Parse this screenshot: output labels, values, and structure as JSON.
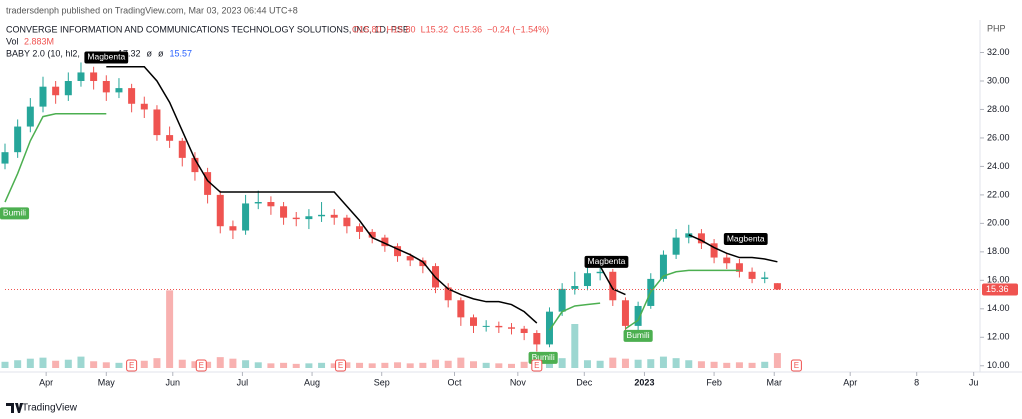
{
  "header": {
    "publisher": "tradersdenph published on TradingView.com, Mar 03, 2023 06:44 UTC+8",
    "symbol": "CONVERGE INFORMATION AND COMMUNICATIONS TECHNOLOGY SOLUTIONS, INC, 1D, PSE",
    "ohlc": [
      "O15.80",
      "H15.80",
      "L15.32",
      "C15.36",
      "−0.24 (−1.54%)"
    ],
    "volume_name": "Vol",
    "volume_text": "2.883M",
    "indicator": "BABY 2.0 (10, hl2,",
    "indicator_values": [
      "17.32",
      "ø",
      "ø",
      "15.57"
    ],
    "currency": "PHP",
    "brand": "TradingView"
  },
  "chart_data": {
    "type": "candlestick",
    "x": [
      0,
      4,
      8,
      12,
      16,
      20,
      24,
      28,
      32,
      36,
      40,
      44,
      48,
      52,
      56,
      60,
      64,
      68,
      72,
      76,
      80,
      84,
      88,
      92,
      96,
      100,
      104,
      108,
      112,
      116,
      120,
      124,
      128,
      132,
      136,
      140,
      144,
      148,
      152,
      156,
      160,
      164,
      168,
      172,
      176,
      180,
      184,
      188,
      192,
      196,
      200,
      204,
      208,
      212,
      216,
      220,
      224,
      228,
      232,
      236,
      240,
      244
    ],
    "open": [
      24.2,
      25.0,
      26.8,
      28.2,
      29.6,
      29.0,
      30.0,
      30.6,
      30.0,
      29.2,
      29.5,
      28.4,
      28.0,
      26.2,
      25.8,
      24.6,
      23.6,
      22.0,
      19.8,
      19.5,
      21.4,
      21.5,
      21.2,
      20.4,
      20.3,
      20.5,
      20.6,
      20.4,
      19.8,
      19.4,
      19.0,
      18.4,
      17.7,
      17.4,
      17.0,
      15.5,
      14.6,
      13.4,
      12.8,
      12.8,
      12.7,
      12.6,
      12.3,
      11.5,
      13.8,
      15.4,
      15.6,
      16.5,
      16.6,
      14.6,
      12.8,
      14.2,
      16.1,
      17.8,
      19.0,
      19.3,
      18.6,
      17.6,
      17.2,
      16.6,
      16.1,
      15.8
    ],
    "high": [
      25.6,
      27.3,
      28.8,
      30.3,
      30.0,
      30.6,
      31.3,
      31.0,
      30.4,
      30.2,
      29.8,
      28.9,
      28.3,
      26.8,
      26.0,
      25.0,
      23.9,
      22.3,
      20.2,
      22.0,
      22.3,
      21.9,
      21.5,
      20.8,
      21.0,
      21.5,
      21.0,
      20.6,
      20.0,
      19.6,
      19.2,
      18.6,
      17.9,
      17.6,
      17.2,
      15.8,
      14.8,
      13.6,
      13.2,
      13.1,
      13.0,
      12.8,
      12.5,
      14.1,
      15.8,
      16.6,
      16.9,
      17.1,
      16.8,
      14.8,
      14.5,
      16.5,
      18.1,
      19.6,
      19.9,
      19.6,
      18.9,
      17.9,
      17.5,
      16.9,
      16.6,
      15.8
    ],
    "low": [
      23.8,
      24.6,
      26.4,
      27.8,
      28.4,
      28.6,
      29.6,
      29.4,
      28.6,
      28.8,
      27.8,
      27.4,
      25.8,
      25.3,
      24.0,
      23.0,
      21.4,
      19.3,
      18.9,
      19.2,
      21.0,
      20.6,
      19.9,
      19.8,
      19.6,
      20.1,
      19.9,
      19.3,
      18.9,
      18.6,
      18.0,
      17.3,
      17.0,
      16.5,
      15.1,
      14.1,
      12.8,
      12.3,
      12.4,
      12.3,
      12.2,
      11.8,
      11.0,
      11.3,
      13.5,
      15.0,
      15.3,
      16.0,
      14.2,
      12.3,
      12.5,
      14.0,
      15.9,
      17.5,
      18.6,
      18.2,
      17.2,
      16.8,
      16.2,
      15.8,
      15.8,
      15.32
    ],
    "close": [
      25.0,
      26.8,
      28.2,
      29.6,
      29.0,
      30.0,
      30.6,
      30.0,
      29.2,
      29.5,
      28.4,
      28.0,
      26.2,
      25.8,
      24.6,
      23.6,
      22.0,
      19.8,
      19.5,
      21.4,
      21.5,
      21.2,
      20.4,
      20.3,
      20.5,
      20.6,
      20.4,
      19.8,
      19.4,
      19.0,
      18.4,
      17.7,
      17.4,
      17.0,
      15.5,
      14.6,
      13.4,
      12.8,
      12.8,
      12.7,
      12.6,
      12.3,
      11.5,
      13.8,
      15.4,
      15.6,
      16.5,
      16.6,
      14.6,
      12.8,
      14.2,
      16.1,
      17.8,
      19.0,
      19.3,
      18.6,
      17.6,
      17.2,
      16.6,
      16.1,
      16.2,
      15.36
    ],
    "up_color": "#26a69a",
    "down_color": "#ef5350",
    "volume": [
      1.2,
      1.5,
      1.8,
      2.0,
      1.4,
      1.6,
      2.2,
      1.3,
      1.1,
      1.0,
      1.2,
      1.4,
      1.9,
      15.0,
      1.6,
      1.3,
      1.2,
      2.1,
      1.8,
      1.5,
      1.1,
      0.9,
      1.0,
      0.8,
      0.9,
      1.0,
      0.9,
      1.1,
      1.0,
      0.9,
      1.0,
      1.1,
      0.9,
      1.0,
      1.6,
      1.4,
      2.0,
      1.3,
      1.0,
      0.9,
      0.8,
      1.2,
      2.4,
      2.8,
      1.9,
      8.5,
      1.5,
      1.4,
      2.0,
      1.8,
      1.6,
      1.7,
      2.2,
      1.9,
      1.5,
      1.3,
      1.2,
      1.0,
      1.1,
      1.0,
      1.2,
      2.883
    ],
    "volume_ylim": [
      0,
      17
    ],
    "stop_line": {
      "color": "#000000",
      "values": [
        null,
        null,
        null,
        null,
        null,
        null,
        null,
        null,
        31.0,
        31.0,
        31.0,
        31.0,
        30.0,
        28.5,
        26.5,
        24.5,
        23.0,
        22.2,
        22.2,
        22.2,
        22.2,
        22.2,
        22.2,
        22.2,
        22.2,
        22.2,
        22.2,
        21.2,
        20.2,
        19.0,
        18.6,
        18.2,
        17.8,
        17.3,
        16.2,
        15.4,
        15.0,
        14.7,
        14.5,
        14.5,
        14.3,
        13.8,
        13.0,
        null,
        null,
        null,
        17.0,
        17.0,
        15.4,
        15.0,
        null,
        null,
        null,
        null,
        19.2,
        18.8,
        18.3,
        17.9,
        17.6,
        17.6,
        17.5,
        17.3
      ]
    },
    "support_line": {
      "color": "#4caf50",
      "values": [
        21.5,
        23.5,
        25.8,
        27.5,
        27.7,
        27.7,
        27.7,
        27.7,
        27.7,
        null,
        null,
        null,
        null,
        null,
        null,
        null,
        null,
        null,
        null,
        null,
        null,
        null,
        null,
        null,
        null,
        null,
        null,
        null,
        null,
        null,
        null,
        null,
        null,
        null,
        null,
        null,
        null,
        null,
        null,
        null,
        null,
        null,
        null,
        12.5,
        13.8,
        14.2,
        14.3,
        14.4,
        null,
        12.6,
        13.2,
        15.2,
        16.3,
        16.6,
        16.7,
        16.7,
        16.7,
        16.7,
        16.7,
        null,
        null,
        null
      ]
    },
    "signals": [
      {
        "label": "Magbenta",
        "x": 32,
        "y": 31.65,
        "color": "#000000"
      },
      {
        "label": "Magbenta",
        "x": 190,
        "y": 17.3,
        "color": "#000000"
      },
      {
        "label": "Magbenta",
        "x": 234,
        "y": 18.9,
        "color": "#000000"
      },
      {
        "label": "Bumili",
        "x": 3,
        "y": 20.7,
        "color": "#4caf50"
      },
      {
        "label": "Bumili",
        "x": 170,
        "y": 10.55,
        "color": "#4caf50"
      },
      {
        "label": "Bumili",
        "x": 200,
        "y": 12.1,
        "color": "#4caf50"
      }
    ],
    "events": [
      {
        "x": 40,
        "label": "E"
      },
      {
        "x": 62,
        "label": "E"
      },
      {
        "x": 106,
        "label": "E"
      },
      {
        "x": 168,
        "label": "E"
      },
      {
        "x": 250,
        "label": "E"
      }
    ],
    "xlim": [
      0,
      308
    ],
    "xticks": [
      {
        "value": 13,
        "label": "Apr"
      },
      {
        "value": 32,
        "label": "May"
      },
      {
        "value": 53,
        "label": "Jun"
      },
      {
        "value": 75,
        "label": "Jul"
      },
      {
        "value": 97,
        "label": "Aug"
      },
      {
        "value": 119,
        "label": "Sep"
      },
      {
        "value": 142,
        "label": "Oct"
      },
      {
        "value": 162,
        "label": "Nov"
      },
      {
        "value": 183,
        "label": "Dec"
      },
      {
        "value": 202,
        "label": "2023"
      },
      {
        "value": 224,
        "label": "Feb"
      },
      {
        "value": 243,
        "label": "Mar"
      },
      {
        "value": 267,
        "label": "Apr"
      },
      {
        "value": 288,
        "label": "8"
      },
      {
        "value": 306,
        "label": "Ju"
      }
    ],
    "ylim": [
      9.0,
      33.3
    ],
    "yticks": [
      {
        "value": 10,
        "label": "10.00"
      },
      {
        "value": 12,
        "label": "12.00"
      },
      {
        "value": 14,
        "label": "14.00"
      },
      {
        "value": 16,
        "label": "16.00"
      },
      {
        "value": 18,
        "label": "18.00"
      },
      {
        "value": 20,
        "label": "20.00"
      },
      {
        "value": 22,
        "label": "22.00"
      },
      {
        "value": 24,
        "label": "24.00"
      },
      {
        "value": 26,
        "label": "26.00"
      },
      {
        "value": 28,
        "label": "28.00"
      },
      {
        "value": 30,
        "label": "30.00"
      },
      {
        "value": 32,
        "label": "32.00"
      }
    ],
    "grid": false
  }
}
